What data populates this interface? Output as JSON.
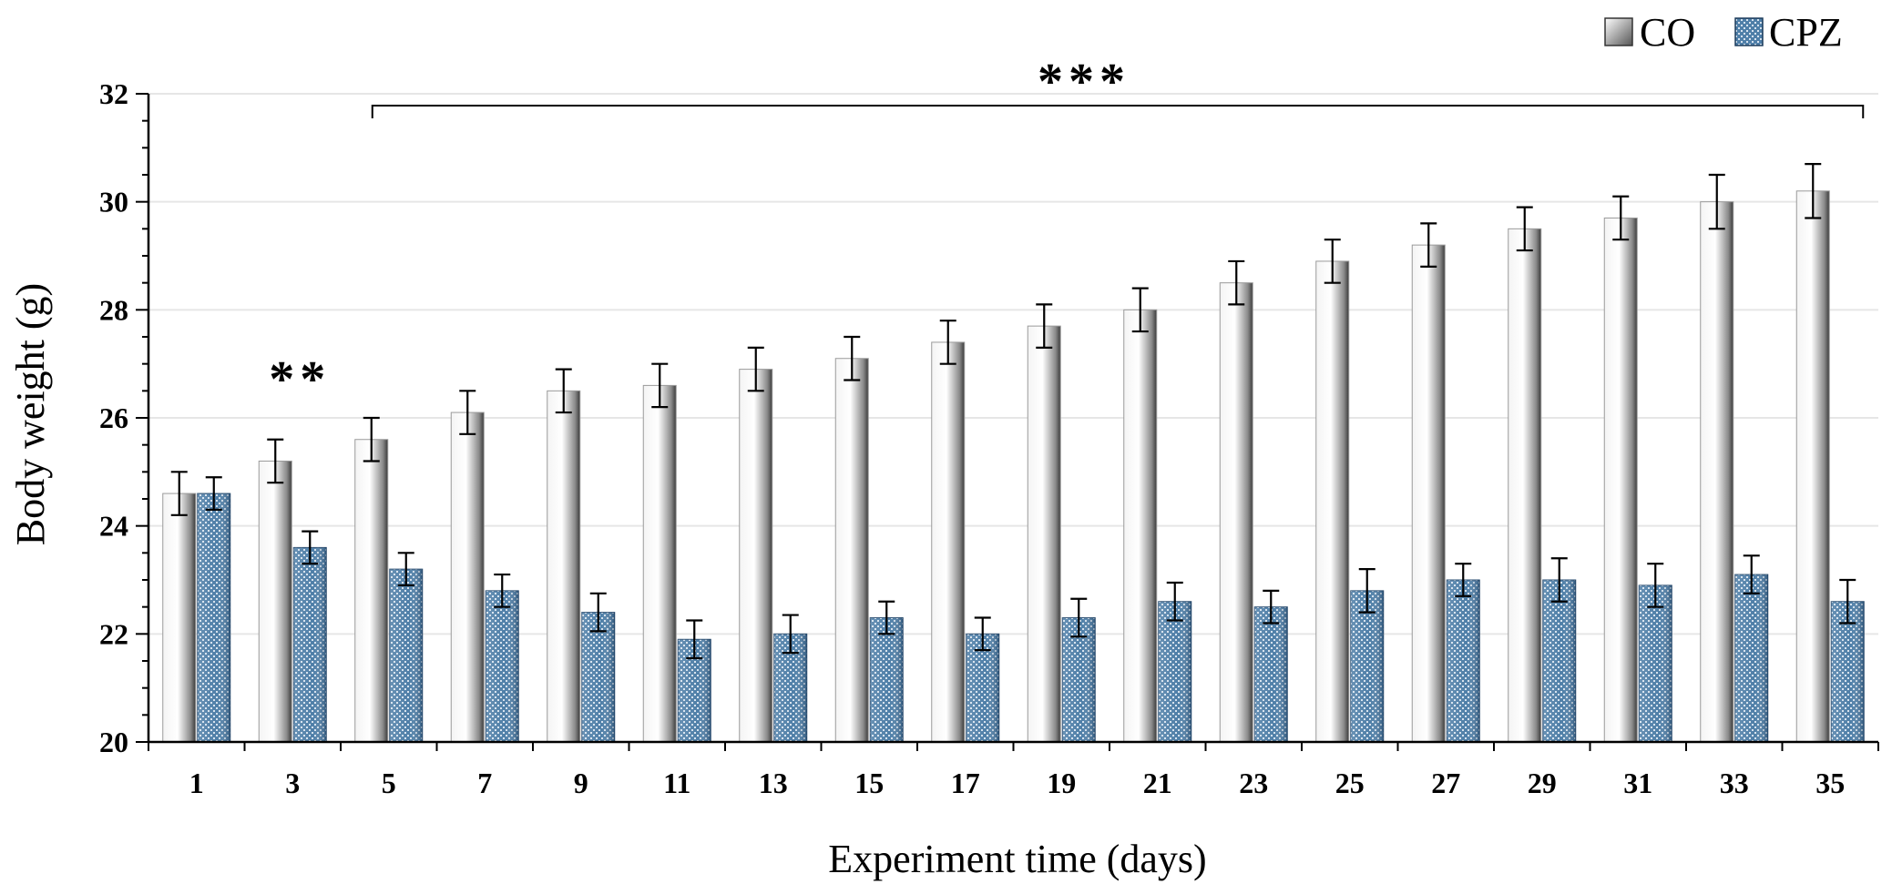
{
  "chart_data": {
    "type": "bar",
    "title": "",
    "xlabel": "Experiment time (days)",
    "ylabel": "Body weight (g)",
    "ylim": [
      20,
      32
    ],
    "yticks": [
      20,
      22,
      24,
      26,
      28,
      30,
      32
    ],
    "grid": true,
    "legend_position": "top-right",
    "categories": [
      "1",
      "3",
      "5",
      "7",
      "9",
      "11",
      "13",
      "15",
      "17",
      "19",
      "21",
      "23",
      "25",
      "27",
      "29",
      "31",
      "33",
      "35"
    ],
    "series": [
      {
        "name": "CO",
        "color": "#c8c8c8",
        "values": [
          24.6,
          25.2,
          25.6,
          26.1,
          26.5,
          26.6,
          26.9,
          27.1,
          27.4,
          27.7,
          28.0,
          28.5,
          28.9,
          29.2,
          29.5,
          29.7,
          30.0,
          30.2
        ],
        "errors": [
          0.4,
          0.4,
          0.4,
          0.4,
          0.4,
          0.4,
          0.4,
          0.4,
          0.4,
          0.4,
          0.4,
          0.4,
          0.4,
          0.4,
          0.4,
          0.4,
          0.5,
          0.5
        ]
      },
      {
        "name": "CPZ",
        "color": "#4f7fa8",
        "values": [
          24.6,
          23.6,
          23.2,
          22.8,
          22.4,
          21.9,
          22.0,
          22.3,
          22.0,
          22.3,
          22.6,
          22.5,
          22.8,
          23.0,
          23.0,
          22.9,
          23.1,
          22.6
        ],
        "errors": [
          0.3,
          0.3,
          0.3,
          0.3,
          0.35,
          0.35,
          0.35,
          0.3,
          0.3,
          0.35,
          0.35,
          0.3,
          0.4,
          0.3,
          0.4,
          0.4,
          0.35,
          0.4
        ]
      }
    ],
    "annotations": [
      {
        "text": "**",
        "category": "3"
      },
      {
        "text": "***",
        "from_category": "5",
        "to_category": "35"
      }
    ]
  }
}
